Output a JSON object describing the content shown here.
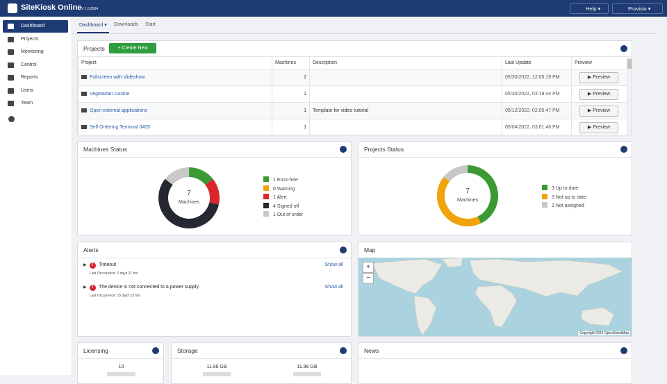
{
  "header": {
    "brand": "SiteKiosk Online",
    "version": "V 1.0.8564",
    "help": "Help",
    "user": "Provisio"
  },
  "sidebar": {
    "items": [
      "Dashboard",
      "Projects",
      "Monitoring",
      "Control",
      "Reports",
      "Users",
      "Team"
    ],
    "active": 0
  },
  "tabs": {
    "items": [
      "Dashboard",
      "Downloads",
      "Start"
    ],
    "active": 0
  },
  "projects": {
    "title": "Projects",
    "create_button": "Create New",
    "columns": [
      "Project",
      "Machines",
      "Description",
      "Last Update",
      "Preview"
    ],
    "rows": [
      {
        "name": "Fullscreen with slideshow",
        "machines": 2,
        "last_update": "05/30/2022, 12:05:19 PM",
        "action": "Preview"
      },
      {
        "name": "Vegetarian cuisine",
        "machines": 1,
        "last_update": "05/30/2022, 03:19:44 PM",
        "action": "Preview"
      },
      {
        "name": "Open external applications",
        "machines": 1,
        "description": "Template for video tutorial",
        "last_update": "05/12/2022, 02:05:47 PM",
        "action": "Preview"
      },
      {
        "name": "Self Ordering Terminal 0405",
        "machines": 1,
        "last_update": "05/04/2022, 03:01:46 PM",
        "action": "Preview"
      }
    ]
  },
  "machines_status": {
    "title": "Machines Status",
    "total": 7,
    "center_label": "Machines",
    "segments": [
      {
        "count": 1,
        "label": "Error-free",
        "color": "#3c9a35"
      },
      {
        "count": 0,
        "label": "Warning",
        "color": "#f0a30a"
      },
      {
        "count": 1,
        "label": "Alert",
        "color": "#d9262c"
      },
      {
        "count": 4,
        "label": "Signed off",
        "color": "#252830"
      },
      {
        "count": 1,
        "label": "Out of order",
        "color": "#c8c8c8"
      }
    ]
  },
  "projects_status": {
    "title": "Projects Status",
    "total": 7,
    "center_label": "Machines",
    "segments": [
      {
        "count": 3,
        "label": "Up to date",
        "color": "#3c9a35"
      },
      {
        "count": 3,
        "label": "Not up to date",
        "color": "#f0a30a"
      },
      {
        "count": 1,
        "label": "Not assigned",
        "color": "#c8c8c8"
      }
    ]
  },
  "alerts": {
    "title": "Alerts",
    "items": [
      {
        "icon": "!",
        "title": "Timeout",
        "detail": "Last Occurrence: 2 days 21 hrs",
        "link": "Show all"
      },
      {
        "icon": "!",
        "title": "The device is not connected to a power supply.",
        "detail": "Last Occurrence: 15 days 23 hrs",
        "link": "Show all"
      }
    ]
  },
  "map": {
    "title": "Map",
    "zoom_in": "+",
    "zoom_out": "−",
    "attribution": "Copyright 2022 OpenStreetMap"
  },
  "licensing": {
    "title": "Licensing",
    "value": 10
  },
  "storage": {
    "title": "Storage",
    "values": [
      "11.98 GB",
      "11.98 GB"
    ]
  },
  "news": {
    "title": "News"
  }
}
